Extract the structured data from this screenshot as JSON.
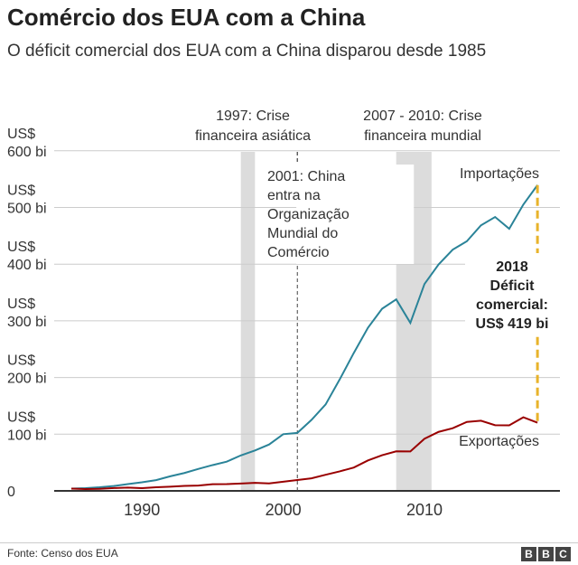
{
  "title": "Comércio dos EUA com a China",
  "subtitle": "O déficit comercial dos EUA com a China disparou desde 1985",
  "source": "Fonte: Censo dos EUA",
  "logo": "BBC",
  "chart_data": {
    "type": "line",
    "x": [
      1985,
      1986,
      1987,
      1988,
      1989,
      1990,
      1991,
      1992,
      1993,
      1994,
      1995,
      1996,
      1997,
      1998,
      1999,
      2000,
      2001,
      2002,
      2003,
      2004,
      2005,
      2006,
      2007,
      2008,
      2009,
      2010,
      2011,
      2012,
      2013,
      2014,
      2015,
      2016,
      2017,
      2018
    ],
    "series": [
      {
        "name": "Importações",
        "color": "#2a8398",
        "values": [
          3.9,
          4.8,
          6.3,
          8.5,
          12,
          15.2,
          19,
          25.7,
          31.5,
          38.8,
          45.5,
          51.5,
          62.6,
          71.2,
          81.8,
          100,
          102.3,
          125.2,
          152.4,
          196.7,
          243.5,
          287.8,
          321.4,
          337.8,
          296.4,
          364.9,
          399.4,
          425.6,
          440.4,
          468.5,
          483.2,
          462.4,
          505.2,
          539.5
        ]
      },
      {
        "name": "Exportações",
        "color": "#990000",
        "values": [
          3.9,
          3.1,
          3.5,
          5,
          5.8,
          4.8,
          6.3,
          7.4,
          8.8,
          9.3,
          11.8,
          12,
          12.9,
          14.2,
          13.1,
          16.2,
          19.2,
          22.1,
          28.4,
          34.4,
          41.2,
          53.7,
          62.9,
          69.7,
          69.5,
          91.9,
          104.1,
          110.5,
          121.7,
          123.7,
          115.9,
          115.6,
          129.8,
          120.3
        ]
      }
    ],
    "ylim": [
      0,
      600
    ],
    "yticks": [
      {
        "v": 0,
        "l1": "",
        "l2": "0"
      },
      {
        "v": 100,
        "l1": "US$",
        "l2": "100 bi"
      },
      {
        "v": 200,
        "l1": "US$",
        "l2": "200 bi"
      },
      {
        "v": 300,
        "l1": "US$",
        "l2": "300 bi"
      },
      {
        "v": 400,
        "l1": "US$",
        "l2": "400 bi"
      },
      {
        "v": 500,
        "l1": "US$",
        "l2": "500 bi"
      },
      {
        "v": 600,
        "l1": "US$",
        "l2": "600 bi"
      }
    ],
    "xticks": [
      1990,
      2000,
      2010
    ],
    "grid": true,
    "shaded": [
      {
        "from": 1997,
        "to": 1998,
        "label1": "1997: Crise",
        "label2": "financeira asiática"
      },
      {
        "from": 2008,
        "to": 2010.5,
        "label1": "2007 - 2010: Crise",
        "label2": "financeira mundial"
      }
    ],
    "event": {
      "year": 2001,
      "lines": [
        "2001: China",
        "entra na",
        "Organização",
        "Mundial do",
        "Comércio"
      ]
    },
    "deficit": {
      "year": 2018,
      "color": "#e8b32a",
      "lines": [
        "2018",
        "Déficit",
        "comercial:",
        "US$ 419 bi"
      ]
    }
  }
}
